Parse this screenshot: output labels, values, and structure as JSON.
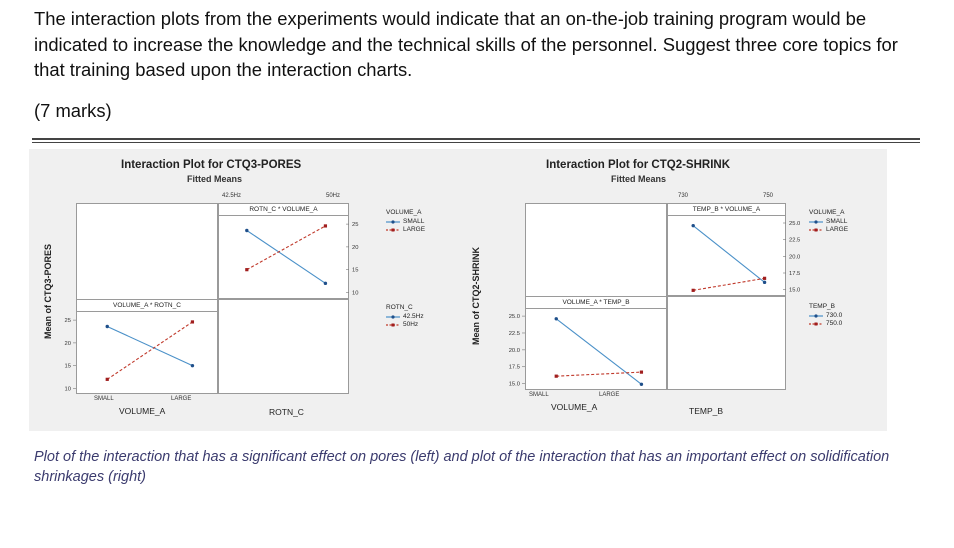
{
  "question": {
    "text": "The interaction plots from the experiments would indicate that an on-the-job training program would be indicated to increase the knowledge and the technical skills of the personnel. Suggest three core topics for that training based upon the interaction charts.",
    "marks": "(7 marks)"
  },
  "caption": "Plot of the interaction that has a significant effect on pores (left) and plot of the interaction that has an important effect on solidification shrinkages (right)",
  "colors": {
    "blue": "#4a90c8",
    "red": "#c0392b"
  },
  "chart_data": [
    {
      "type": "line",
      "title": "Interaction Plot for CTQ3-PORES",
      "subtitle": "Fitted Means",
      "ylabel": "Mean of CTQ3-PORES",
      "facets": [
        {
          "strip": "ROTN_C * VOLUME_A",
          "x_ticks": [
            "42.5Hz",
            "50Hz"
          ],
          "xlabel": "ROTN_C",
          "yticks": [
            10,
            15,
            20,
            25
          ],
          "ylim": [
            9,
            27
          ],
          "series": [
            {
              "name": "SMALL",
              "values": [
                23.6,
                12.0
              ]
            },
            {
              "name": "LARGE",
              "values": [
                15.0,
                24.6
              ]
            }
          ],
          "legend_title": "VOLUME_A",
          "legend": [
            "SMALL",
            "LARGE"
          ]
        },
        {
          "strip": "VOLUME_A * ROTN_C",
          "x_ticks": [
            "SMALL",
            "LARGE"
          ],
          "xlabel": "VOLUME_A",
          "yticks": [
            10,
            15,
            20,
            25
          ],
          "ylim": [
            9,
            27
          ],
          "series": [
            {
              "name": "42.5Hz",
              "values": [
                23.6,
                15.0
              ]
            },
            {
              "name": "50Hz",
              "values": [
                12.0,
                24.6
              ]
            }
          ],
          "legend_title": "ROTN_C",
          "legend": [
            "42.5Hz",
            "50Hz"
          ]
        }
      ]
    },
    {
      "type": "line",
      "title": "Interaction Plot for CTQ2-SHRINK",
      "subtitle": "Fitted Means",
      "ylabel": "Mean of CTQ2-SHRINK",
      "facets": [
        {
          "strip": "TEMP_B * VOLUME_A",
          "x_ticks": [
            "730",
            "750"
          ],
          "xlabel": "TEMP_B",
          "yticks": [
            "15.0",
            "17.5",
            "20.0",
            "22.5",
            "25.0"
          ],
          "ylim": [
            14.2,
            26.2
          ],
          "series": [
            {
              "name": "SMALL",
              "values": [
                24.6,
                16.1
              ]
            },
            {
              "name": "LARGE",
              "values": [
                14.9,
                16.7
              ]
            }
          ],
          "legend_title": "VOLUME_A",
          "legend": [
            "SMALL",
            "LARGE"
          ]
        },
        {
          "strip": "VOLUME_A * TEMP_B",
          "x_ticks": [
            "SMALL",
            "LARGE"
          ],
          "xlabel": "VOLUME_A",
          "yticks": [
            "15.0",
            "17.5",
            "20.0",
            "22.5",
            "25.0"
          ],
          "ylim": [
            14.2,
            26.2
          ],
          "series": [
            {
              "name": "730.0",
              "values": [
                24.6,
                14.9
              ]
            },
            {
              "name": "750.0",
              "values": [
                16.1,
                16.7
              ]
            }
          ],
          "legend_title": "TEMP_B",
          "legend": [
            "730.0",
            "750.0"
          ]
        }
      ]
    }
  ]
}
